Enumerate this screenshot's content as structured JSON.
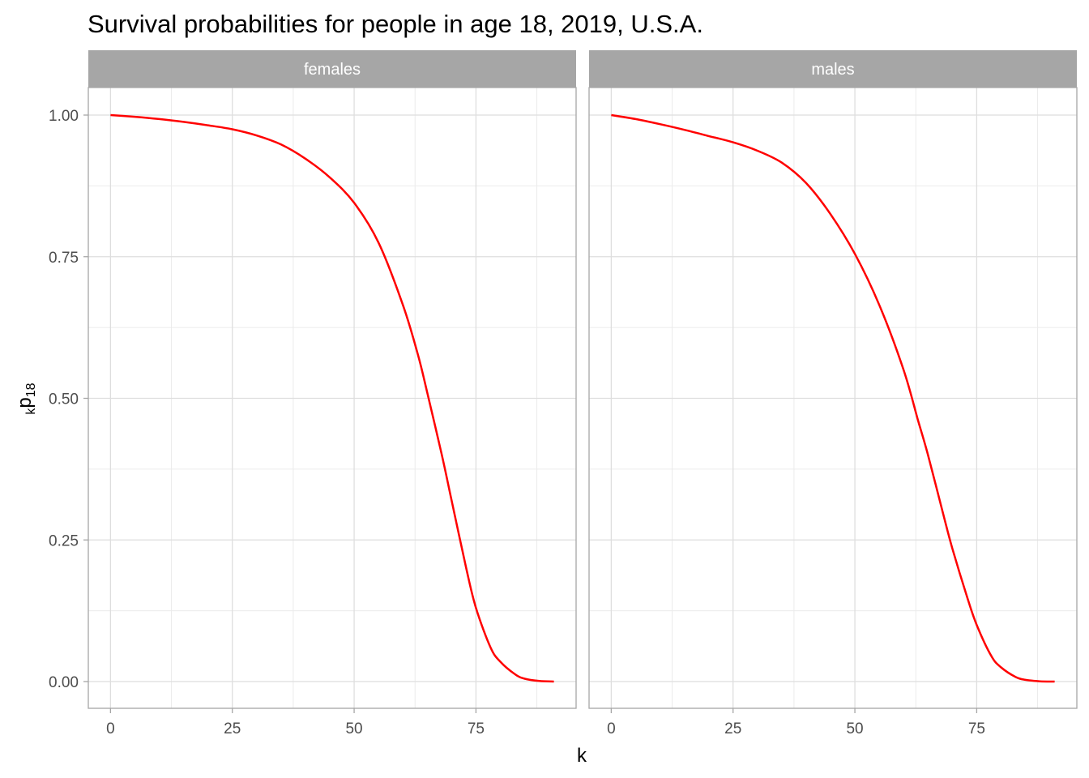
{
  "chart_data": {
    "type": "line",
    "title": "Survival probabilities for people in age 18, 2019, U.S.A.",
    "xlabel": "k",
    "ylabel": {
      "main": "p",
      "left_sub": "k",
      "right_sub": "18"
    },
    "xlim": [
      0,
      91
    ],
    "ylim": [
      0,
      1
    ],
    "x_ticks": [
      0,
      25,
      50,
      75
    ],
    "y_ticks": [
      0,
      0.25,
      0.5,
      0.75,
      1.0
    ],
    "x_tick_labels": [
      "0",
      "25",
      "50",
      "75"
    ],
    "y_tick_labels": [
      "0.00",
      "0.25",
      "0.50",
      "0.75",
      "1.00"
    ],
    "grid": true,
    "line_color": "#ff0000",
    "strip_color": "#a6a6a6",
    "panels": [
      {
        "label": "females",
        "x": [
          0,
          5,
          10,
          15,
          20,
          25,
          30,
          35,
          40,
          45,
          50,
          55,
          60,
          63,
          65,
          68,
          70,
          73,
          75,
          78,
          80,
          83,
          85,
          88,
          91
        ],
        "y": [
          1.0,
          0.997,
          0.993,
          0.988,
          0.982,
          0.975,
          0.964,
          0.948,
          0.923,
          0.89,
          0.845,
          0.775,
          0.665,
          0.58,
          0.51,
          0.4,
          0.32,
          0.2,
          0.13,
          0.06,
          0.035,
          0.013,
          0.005,
          0.001,
          0.0
        ]
      },
      {
        "label": "males",
        "x": [
          0,
          5,
          10,
          15,
          20,
          25,
          30,
          35,
          40,
          45,
          50,
          55,
          60,
          63,
          65,
          68,
          70,
          73,
          75,
          78,
          80,
          83,
          85,
          88,
          91
        ],
        "y": [
          1.0,
          0.993,
          0.984,
          0.974,
          0.963,
          0.952,
          0.937,
          0.916,
          0.88,
          0.825,
          0.755,
          0.665,
          0.55,
          0.46,
          0.4,
          0.3,
          0.235,
          0.15,
          0.1,
          0.045,
          0.025,
          0.008,
          0.003,
          0.0005,
          0.0
        ]
      }
    ]
  }
}
